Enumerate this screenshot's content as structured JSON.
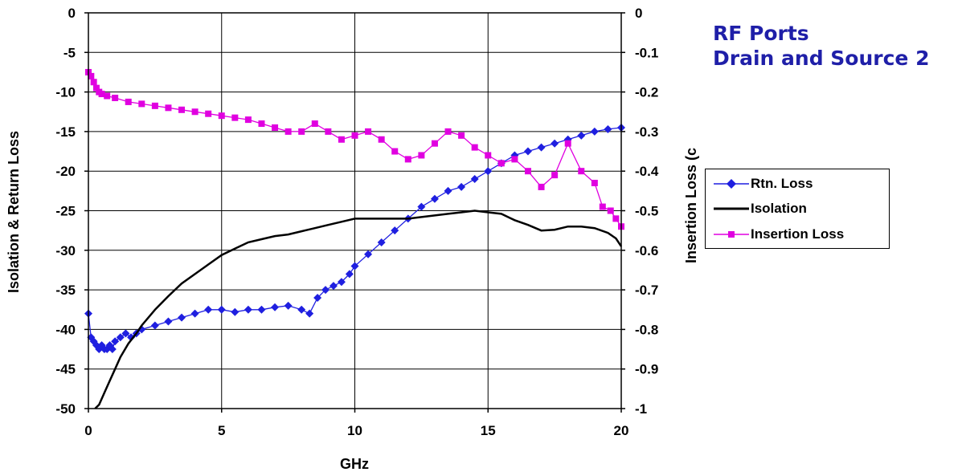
{
  "title_lines": [
    "RF Ports",
    "Drain and Source 2"
  ],
  "colors": {
    "title": "#1F1FA8",
    "rtn_loss": "#1F1FE0",
    "isolation": "#000000",
    "insertion_loss": "#E000E0"
  },
  "legend": [
    {
      "label": "Rtn. Loss",
      "marker": "diamond",
      "color": "#1F1FE0"
    },
    {
      "label": "Isolation",
      "marker": "none",
      "color": "#000000"
    },
    {
      "label": "Insertion Loss",
      "marker": "square",
      "color": "#E000E0"
    }
  ],
  "chart_data": {
    "type": "line",
    "xlabel": "GHz",
    "ylabel": "Isolation & Return Loss",
    "y2label": "Insertion Loss (c",
    "xlim": [
      0,
      20
    ],
    "ylim": [
      -50,
      0
    ],
    "y2lim": [
      -1,
      0
    ],
    "xticks": [
      "0",
      "5",
      "10",
      "15",
      "20"
    ],
    "yticks": [
      "0",
      "-5",
      "-10",
      "-15",
      "-20",
      "-25",
      "-30",
      "-35",
      "-40",
      "-45",
      "-50"
    ],
    "y2ticks": [
      "0",
      "-0.1",
      "-0.2",
      "-0.3",
      "-0.4",
      "-0.5",
      "-0.6",
      "-0.7",
      "-0.8",
      "-0.9",
      "-1"
    ],
    "grid": true,
    "legend_position": "right",
    "series": [
      {
        "name": "Rtn. Loss",
        "axis": "left",
        "marker": "diamond",
        "x": [
          0.0,
          0.1,
          0.2,
          0.3,
          0.4,
          0.5,
          0.6,
          0.7,
          0.8,
          0.9,
          1.0,
          1.2,
          1.4,
          1.6,
          1.8,
          2.0,
          2.5,
          3.0,
          3.5,
          4.0,
          4.5,
          5.0,
          5.5,
          6.0,
          6.5,
          7.0,
          7.5,
          8.0,
          8.3,
          8.6,
          8.9,
          9.2,
          9.5,
          9.8,
          10.0,
          10.5,
          11.0,
          11.5,
          12.0,
          12.5,
          13.0,
          13.5,
          14.0,
          14.5,
          15.0,
          15.5,
          16.0,
          16.5,
          17.0,
          17.5,
          18.0,
          18.5,
          19.0,
          19.5,
          20.0
        ],
        "y": [
          -38,
          -41,
          -41.5,
          -42,
          -42.5,
          -42,
          -42.5,
          -42.5,
          -42,
          -42.5,
          -41.5,
          -41,
          -40.5,
          -41,
          -40.5,
          -40,
          -39.5,
          -39,
          -38.5,
          -38,
          -37.5,
          -37.5,
          -37.8,
          -37.5,
          -37.5,
          -37.2,
          -37,
          -37.5,
          -38,
          -36,
          -35,
          -34.5,
          -34,
          -33,
          -32,
          -30.5,
          -29,
          -27.5,
          -26,
          -24.5,
          -23.5,
          -22.5,
          -22,
          -21,
          -20,
          -19,
          -18,
          -17.5,
          -17,
          -16.5,
          -16,
          -15.5,
          -15,
          -14.7,
          -14.5
        ]
      },
      {
        "name": "Isolation",
        "axis": "left",
        "marker": "none",
        "x": [
          0.25,
          0.4,
          0.6,
          0.8,
          1.0,
          1.2,
          1.5,
          1.8,
          2.0,
          2.5,
          3.0,
          3.5,
          4.0,
          4.5,
          5.0,
          5.5,
          6.0,
          6.5,
          7.0,
          7.5,
          8.0,
          8.5,
          9.0,
          9.5,
          10.0,
          10.5,
          11.0,
          11.5,
          12.0,
          12.5,
          13.0,
          13.5,
          14.0,
          14.5,
          15.0,
          15.5,
          16.0,
          16.5,
          17.0,
          17.5,
          18.0,
          18.5,
          19.0,
          19.5,
          19.8,
          20.0
        ],
        "y": [
          -50,
          -49.5,
          -48,
          -46.5,
          -45,
          -43.5,
          -41.8,
          -40.5,
          -39.5,
          -37.5,
          -35.8,
          -34.2,
          -33,
          -31.8,
          -30.6,
          -29.8,
          -29,
          -28.6,
          -28.2,
          -28,
          -27.6,
          -27.2,
          -26.8,
          -26.4,
          -26,
          -26,
          -26,
          -26,
          -26,
          -25.8,
          -25.6,
          -25.4,
          -25.2,
          -25,
          -25.2,
          -25.4,
          -26.2,
          -26.8,
          -27.5,
          -27.4,
          -27,
          -27,
          -27.2,
          -27.8,
          -28.5,
          -29.5
        ]
      },
      {
        "name": "Insertion Loss",
        "axis": "right",
        "marker": "square",
        "x": [
          0.0,
          0.1,
          0.2,
          0.3,
          0.4,
          0.5,
          0.7,
          1.0,
          1.5,
          2.0,
          2.5,
          3.0,
          3.5,
          4.0,
          4.5,
          5.0,
          5.5,
          6.0,
          6.5,
          7.0,
          7.5,
          8.0,
          8.5,
          9.0,
          9.5,
          10.0,
          10.5,
          11.0,
          11.5,
          12.0,
          12.5,
          13.0,
          13.5,
          14.0,
          14.5,
          15.0,
          15.5,
          16.0,
          16.5,
          17.0,
          17.5,
          18.0,
          18.5,
          19.0,
          19.3,
          19.6,
          19.8,
          20.0
        ],
        "y": [
          -0.15,
          -0.16,
          -0.175,
          -0.19,
          -0.2,
          -0.205,
          -0.21,
          -0.215,
          -0.225,
          -0.23,
          -0.235,
          -0.24,
          -0.245,
          -0.25,
          -0.255,
          -0.26,
          -0.265,
          -0.27,
          -0.28,
          -0.29,
          -0.3,
          -0.3,
          -0.28,
          -0.3,
          -0.32,
          -0.31,
          -0.3,
          -0.32,
          -0.35,
          -0.37,
          -0.36,
          -0.33,
          -0.3,
          -0.31,
          -0.34,
          -0.36,
          -0.38,
          -0.37,
          -0.4,
          -0.44,
          -0.41,
          -0.33,
          -0.4,
          -0.43,
          -0.49,
          -0.5,
          -0.52,
          -0.54
        ]
      }
    ]
  }
}
